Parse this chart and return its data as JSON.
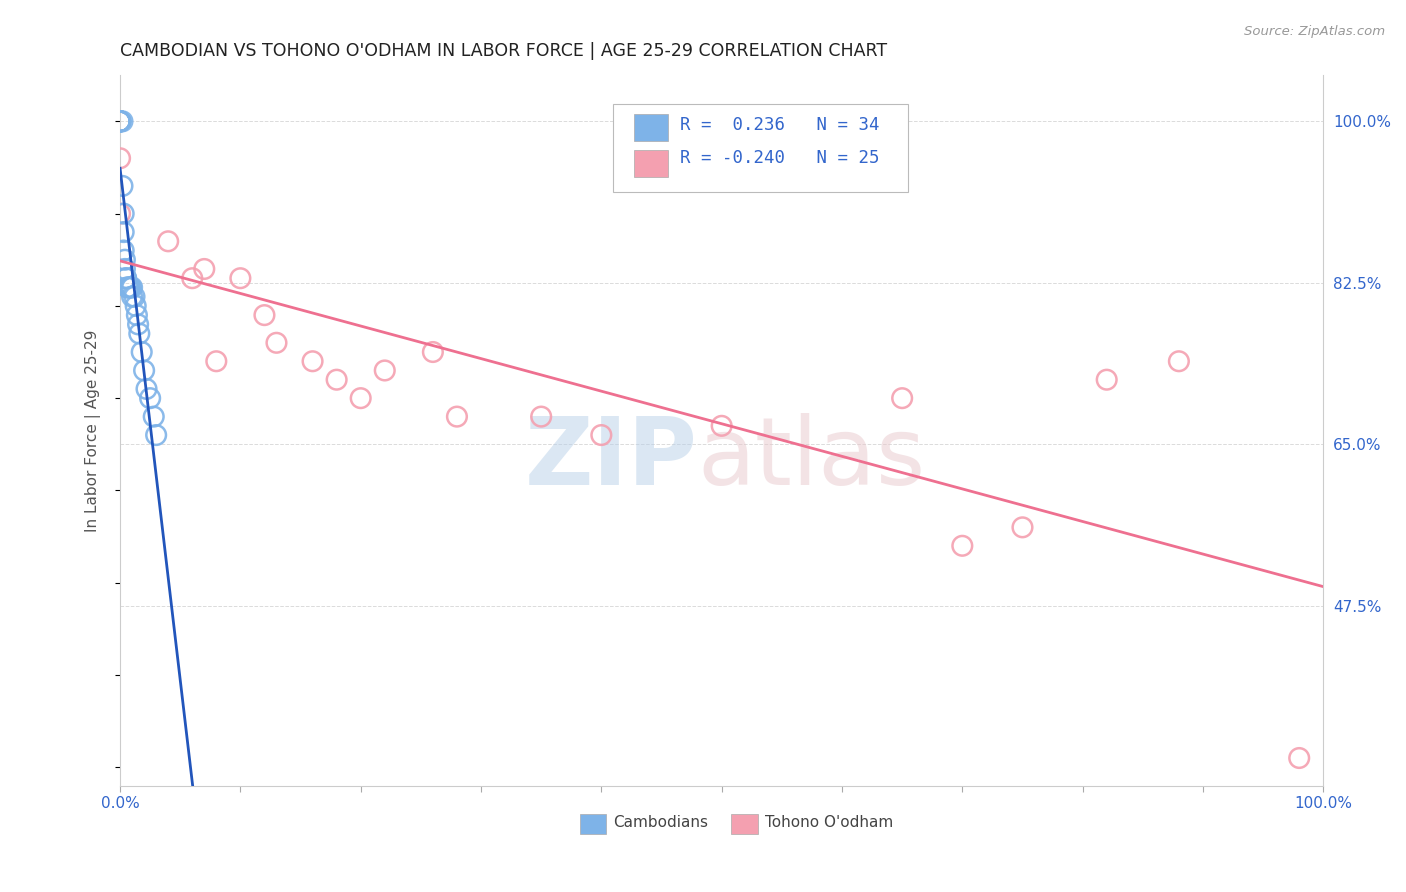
{
  "title": "CAMBODIAN VS TOHONO O'ODHAM IN LABOR FORCE | AGE 25-29 CORRELATION CHART",
  "source": "Source: ZipAtlas.com",
  "ylabel": "In Labor Force | Age 25-29",
  "xlim": [
    0.0,
    1.0
  ],
  "ylim": [
    0.28,
    1.05
  ],
  "y_tick_labels_right": [
    "100.0%",
    "82.5%",
    "65.0%",
    "47.5%"
  ],
  "y_tick_values_right": [
    1.0,
    0.825,
    0.65,
    0.475
  ],
  "cambodian_color": "#7EB3E8",
  "tohono_color": "#F4A0B0",
  "cambodian_trend_color": "#2255BB",
  "tohono_trend_color": "#EE7090",
  "cambodian_x": [
    0.0,
    0.0,
    0.0,
    0.0,
    0.0,
    0.0,
    0.0,
    0.0,
    0.002,
    0.002,
    0.003,
    0.003,
    0.003,
    0.004,
    0.004,
    0.005,
    0.005,
    0.006,
    0.007,
    0.008,
    0.009,
    0.01,
    0.01,
    0.012,
    0.013,
    0.014,
    0.015,
    0.016,
    0.018,
    0.02,
    0.022,
    0.025,
    0.028,
    0.03
  ],
  "cambodian_y": [
    1.0,
    1.0,
    1.0,
    1.0,
    1.0,
    1.0,
    1.0,
    1.0,
    1.0,
    0.93,
    0.9,
    0.88,
    0.86,
    0.85,
    0.84,
    0.83,
    0.83,
    0.82,
    0.82,
    0.82,
    0.82,
    0.82,
    0.81,
    0.81,
    0.8,
    0.79,
    0.78,
    0.77,
    0.75,
    0.73,
    0.71,
    0.7,
    0.68,
    0.66
  ],
  "tohono_x": [
    0.0,
    0.0,
    0.0,
    0.04,
    0.06,
    0.07,
    0.08,
    0.1,
    0.12,
    0.13,
    0.16,
    0.18,
    0.2,
    0.22,
    0.26,
    0.28,
    0.35,
    0.4,
    0.5,
    0.65,
    0.7,
    0.75,
    0.82,
    0.88,
    0.98
  ],
  "tohono_y": [
    1.0,
    0.96,
    0.9,
    0.87,
    0.83,
    0.84,
    0.74,
    0.83,
    0.79,
    0.76,
    0.74,
    0.72,
    0.7,
    0.73,
    0.75,
    0.68,
    0.68,
    0.66,
    0.67,
    0.7,
    0.54,
    0.56,
    0.72,
    0.74,
    0.31
  ],
  "background_color": "#ffffff",
  "grid_color": "#cccccc"
}
